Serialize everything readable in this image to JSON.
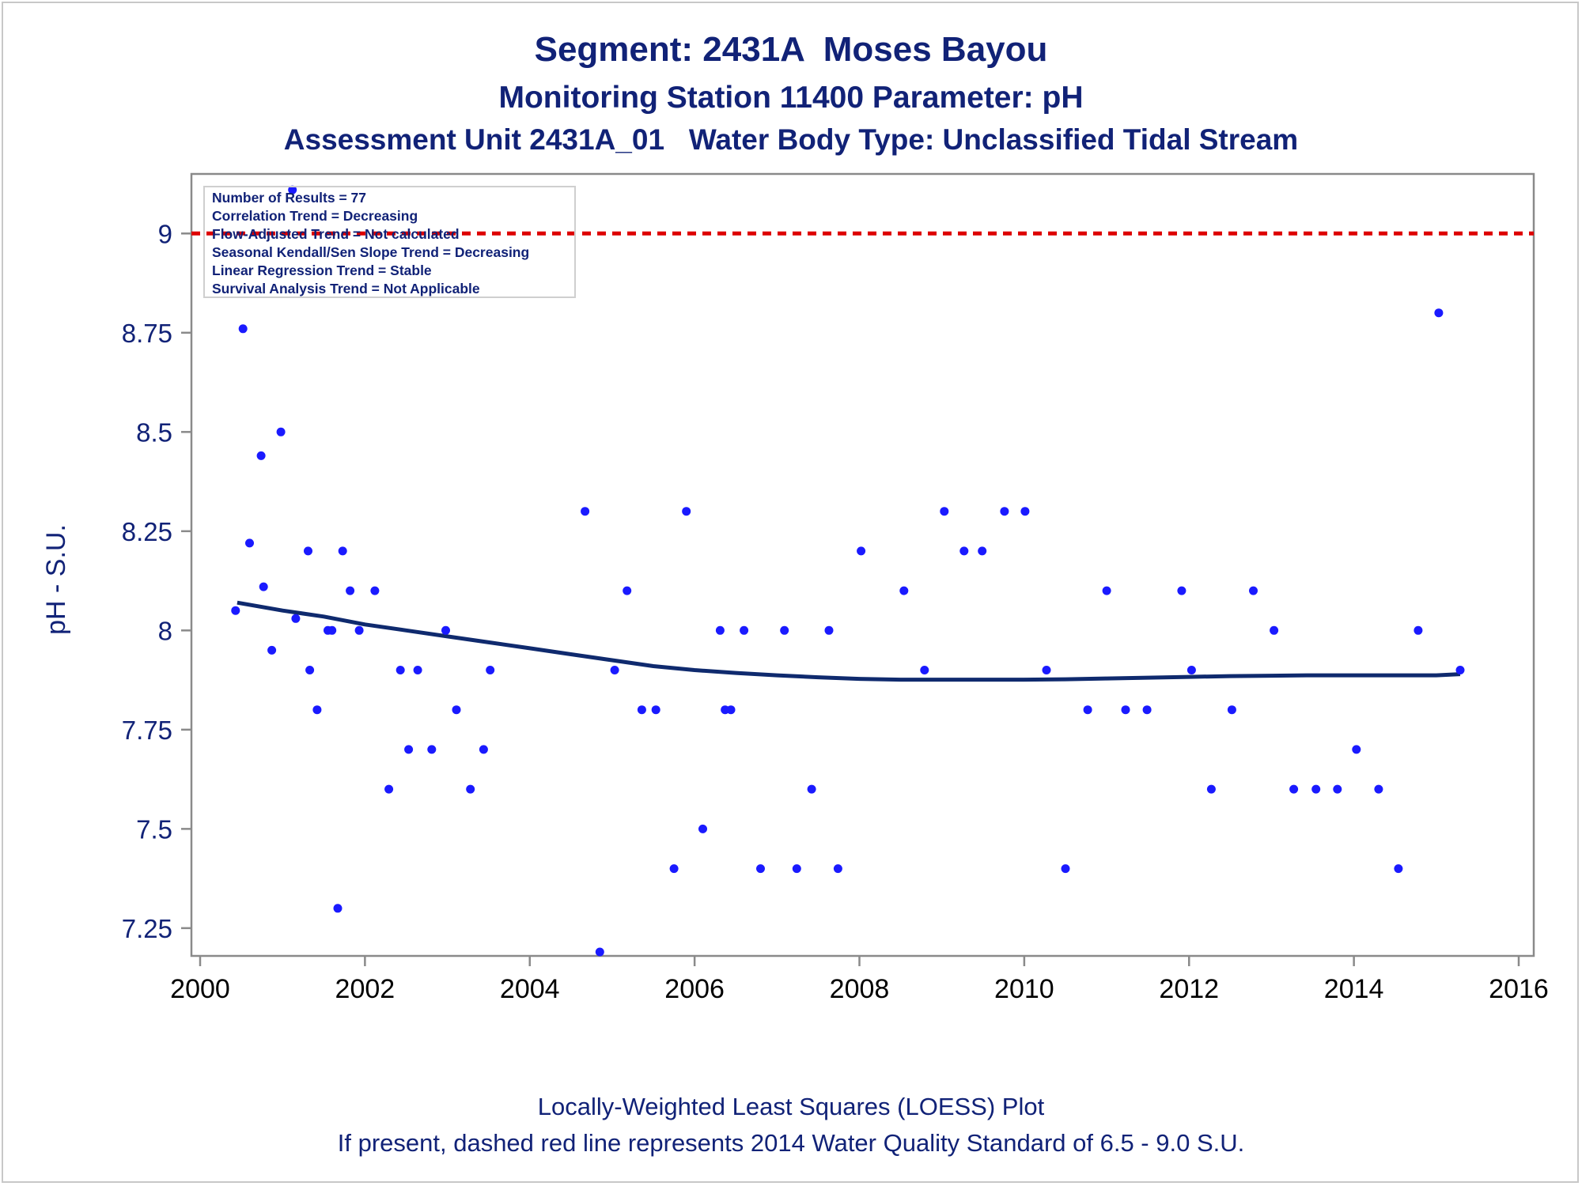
{
  "titles": {
    "line1": "Segment: 2431A  Moses Bayou",
    "line2": "Monitoring Station 11400 Parameter: pH",
    "line3": "Assessment Unit 2431A_01   Water Body Type: Unclassified Tidal Stream"
  },
  "footnotes": {
    "line1": "Locally-Weighted Least Squares (LOESS) Plot",
    "line2": "If present, dashed red line represents 2014 Water Quality Standard of 6.5 - 9.0 S.U."
  },
  "stats_box": [
    "Number of Results = 77",
    "Correlation Trend = Decreasing",
    "Flow-Adjusted Trend = Not calculated",
    "Seasonal Kendall/Sen Slope Trend = Decreasing",
    "Linear Regression Trend = Stable",
    "Survival Analysis Trend = Not Applicable"
  ],
  "colors": {
    "text": "#112277",
    "points": "#1a1aff",
    "loess": "#0f2a6e",
    "standard": "#dd0000",
    "axis": "#8a8a8a"
  },
  "chart_data": {
    "type": "scatter",
    "title": "Segment: 2431A  Moses Bayou",
    "xlabel": "",
    "ylabel": "pH - S.U.",
    "xlim": [
      2000,
      2016
    ],
    "ylim": [
      7.18,
      9.15
    ],
    "x_ticks": [
      2000,
      2002,
      2004,
      2006,
      2008,
      2010,
      2012,
      2014,
      2016
    ],
    "y_ticks": [
      7.25,
      7.5,
      7.75,
      8,
      8.25,
      8.5,
      8.75,
      9
    ],
    "y_tick_labels": [
      "7.25",
      "7.5",
      "7.75",
      "8",
      "8.25",
      "8.5",
      "8.75",
      "9"
    ],
    "reference_line": {
      "y": 9.0,
      "style": "dashed",
      "color": "#dd0000"
    },
    "legend": "none",
    "grid": false,
    "series": [
      {
        "kind": "points",
        "points": [
          [
            2000.43,
            8.05
          ],
          [
            2000.52,
            8.76
          ],
          [
            2000.6,
            8.22
          ],
          [
            2000.74,
            8.44
          ],
          [
            2000.77,
            8.11
          ],
          [
            2000.87,
            7.95
          ],
          [
            2000.98,
            8.5
          ],
          [
            2001.12,
            9.11
          ],
          [
            2001.16,
            8.03
          ],
          [
            2001.31,
            8.2
          ],
          [
            2001.33,
            7.9
          ],
          [
            2001.42,
            7.8
          ],
          [
            2001.55,
            8.0
          ],
          [
            2001.6,
            8.0
          ],
          [
            2001.67,
            7.3
          ],
          [
            2001.73,
            8.2
          ],
          [
            2001.82,
            8.1
          ],
          [
            2001.93,
            8.0
          ],
          [
            2002.12,
            8.1
          ],
          [
            2002.29,
            7.6
          ],
          [
            2002.43,
            7.9
          ],
          [
            2002.53,
            7.7
          ],
          [
            2002.64,
            7.9
          ],
          [
            2002.81,
            7.7
          ],
          [
            2002.98,
            8.0
          ],
          [
            2003.11,
            7.8
          ],
          [
            2003.28,
            7.6
          ],
          [
            2003.44,
            7.7
          ],
          [
            2003.52,
            7.9
          ],
          [
            2004.67,
            8.3
          ],
          [
            2004.85,
            7.19
          ],
          [
            2005.03,
            7.9
          ],
          [
            2005.18,
            8.1
          ],
          [
            2005.36,
            7.8
          ],
          [
            2005.53,
            7.8
          ],
          [
            2005.75,
            7.4
          ],
          [
            2005.9,
            8.3
          ],
          [
            2006.1,
            7.5
          ],
          [
            2006.31,
            8.0
          ],
          [
            2006.37,
            7.8
          ],
          [
            2006.44,
            7.8
          ],
          [
            2006.6,
            8.0
          ],
          [
            2006.8,
            7.4
          ],
          [
            2007.09,
            8.0
          ],
          [
            2007.24,
            7.4
          ],
          [
            2007.42,
            7.6
          ],
          [
            2007.63,
            8.0
          ],
          [
            2007.74,
            7.4
          ],
          [
            2008.02,
            8.2
          ],
          [
            2008.54,
            8.1
          ],
          [
            2008.79,
            7.9
          ],
          [
            2009.03,
            8.3
          ],
          [
            2009.27,
            8.2
          ],
          [
            2009.49,
            8.2
          ],
          [
            2009.76,
            8.3
          ],
          [
            2010.01,
            8.3
          ],
          [
            2010.27,
            7.9
          ],
          [
            2010.5,
            7.4
          ],
          [
            2010.77,
            7.8
          ],
          [
            2011.0,
            8.1
          ],
          [
            2011.23,
            7.8
          ],
          [
            2011.49,
            7.8
          ],
          [
            2011.91,
            8.1
          ],
          [
            2012.03,
            7.9
          ],
          [
            2012.27,
            7.6
          ],
          [
            2012.52,
            7.8
          ],
          [
            2012.78,
            8.1
          ],
          [
            2013.03,
            8.0
          ],
          [
            2013.27,
            7.6
          ],
          [
            2013.54,
            7.6
          ],
          [
            2013.8,
            7.6
          ],
          [
            2014.03,
            7.7
          ],
          [
            2014.3,
            7.6
          ],
          [
            2014.54,
            7.4
          ],
          [
            2014.78,
            8.0
          ],
          [
            2015.03,
            8.8
          ],
          [
            2015.29,
            7.9
          ]
        ]
      },
      {
        "kind": "loess",
        "points": [
          [
            2000.45,
            8.07
          ],
          [
            2001.0,
            8.05
          ],
          [
            2001.5,
            8.035
          ],
          [
            2002.0,
            8.015
          ],
          [
            2002.5,
            8.0
          ],
          [
            2003.0,
            7.985
          ],
          [
            2003.5,
            7.97
          ],
          [
            2004.0,
            7.955
          ],
          [
            2004.5,
            7.94
          ],
          [
            2005.0,
            7.925
          ],
          [
            2005.5,
            7.91
          ],
          [
            2006.0,
            7.9
          ],
          [
            2006.5,
            7.893
          ],
          [
            2007.0,
            7.887
          ],
          [
            2007.5,
            7.882
          ],
          [
            2008.0,
            7.878
          ],
          [
            2008.5,
            7.876
          ],
          [
            2009.0,
            7.876
          ],
          [
            2009.5,
            7.876
          ],
          [
            2010.0,
            7.876
          ],
          [
            2010.5,
            7.877
          ],
          [
            2011.0,
            7.879
          ],
          [
            2011.5,
            7.881
          ],
          [
            2012.0,
            7.883
          ],
          [
            2012.5,
            7.885
          ],
          [
            2013.0,
            7.886
          ],
          [
            2013.5,
            7.887
          ],
          [
            2014.0,
            7.887
          ],
          [
            2014.5,
            7.887
          ],
          [
            2015.0,
            7.887
          ],
          [
            2015.29,
            7.89
          ]
        ]
      }
    ]
  }
}
